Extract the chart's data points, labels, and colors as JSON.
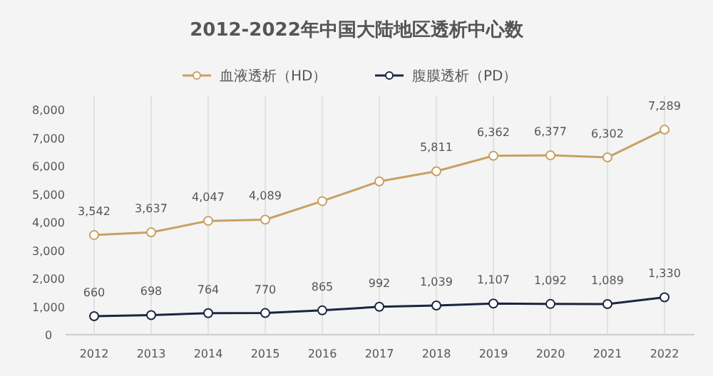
{
  "chart_data": {
    "type": "line",
    "title": "2012-2022年中国大陆地区透析中心数",
    "categories": [
      "2012",
      "2013",
      "2014",
      "2015",
      "2016",
      "2017",
      "2018",
      "2019",
      "2020",
      "2021",
      "2022"
    ],
    "series": [
      {
        "name": "血液透析（HD）",
        "color": "#c9a063",
        "values": [
          3542,
          3637,
          4047,
          4089,
          4750,
          5450,
          5811,
          6362,
          6377,
          6302,
          7289
        ],
        "value_labels": [
          "3,542",
          "3,637",
          "4,047",
          "4,089",
          null,
          null,
          "5,811",
          "6,362",
          "6,377",
          "6,302",
          "7,289"
        ]
      },
      {
        "name": "腹膜透析（PD）",
        "color": "#1c2540",
        "values": [
          660,
          698,
          764,
          770,
          865,
          992,
          1039,
          1107,
          1092,
          1089,
          1330
        ],
        "value_labels": [
          "660",
          "698",
          "764",
          "770",
          "865",
          "992",
          "1,039",
          "1,107",
          "1,092",
          "1,089",
          "1,330"
        ]
      }
    ],
    "ylim": [
      0,
      8000
    ],
    "yticks": [
      0,
      {
        "value": 1000,
        "label": "1,000"
      },
      {
        "value": 2000,
        "label": "2,000"
      },
      {
        "value": 3000,
        "label": "3,000"
      },
      {
        "value": 4000,
        "label": "4,000"
      },
      {
        "value": 5000,
        "label": "5,000"
      },
      {
        "value": 6000,
        "label": "6,000"
      },
      {
        "value": 7000,
        "label": "7,000"
      },
      {
        "value": 8000,
        "label": "8,000"
      }
    ],
    "grid": "x",
    "legend": "top",
    "marker": "circle",
    "line_style": "solid"
  }
}
